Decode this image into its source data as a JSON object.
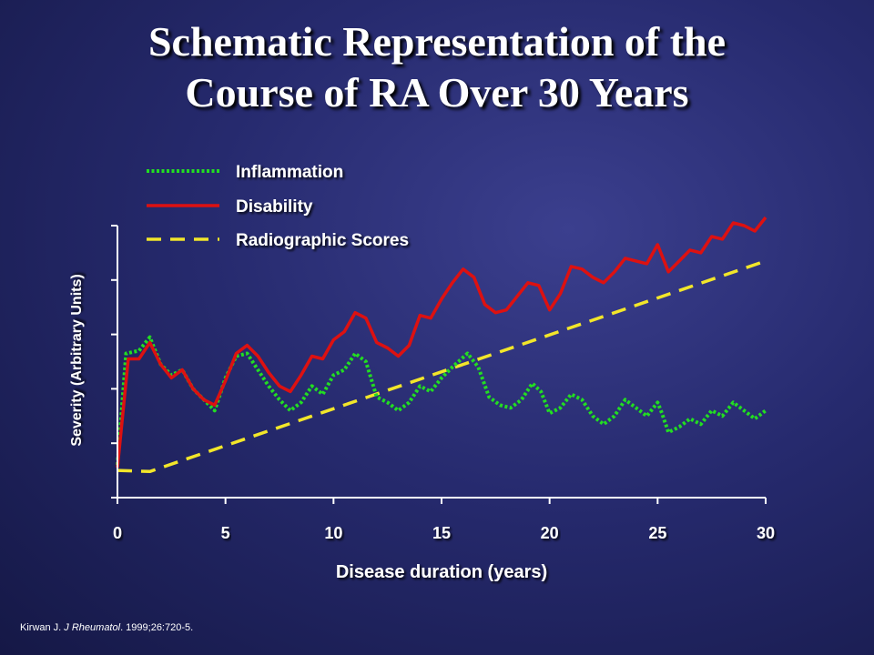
{
  "title_line1": "Schematic Representation of the",
  "title_line2": "Course of RA Over 30 Years",
  "citation": {
    "author": "Kirwan J. ",
    "journal": "J Rheumatol",
    "rest": ". 1999;26:720-5."
  },
  "colors": {
    "inflammation": "#22dd22",
    "disability": "#dd1111",
    "radiographic": "#f2e62a",
    "axis": "#ffffff"
  },
  "chart_data": {
    "type": "line",
    "title": "",
    "xlabel": "Disease duration (years)",
    "ylabel": "Severity (Arbitrary Units)",
    "xlim": [
      0,
      30
    ],
    "ylim": [
      0,
      5
    ],
    "x_ticks": [
      0,
      5,
      10,
      15,
      20,
      25,
      30
    ],
    "y_tick_values": [
      0,
      1,
      2,
      3,
      4,
      5
    ],
    "y_tick_labels_shown": false,
    "grid": false,
    "legend_position": "top-left",
    "series": [
      {
        "name": "Inflammation",
        "style": "dotted",
        "x": [
          0,
          0.4,
          1,
          1.5,
          2,
          2.5,
          3,
          3.5,
          4,
          4.5,
          5,
          5.5,
          6,
          6.5,
          7,
          7.5,
          8,
          8.5,
          9,
          9.5,
          10,
          10.5,
          11,
          11.5,
          12,
          12.5,
          13,
          13.5,
          14,
          14.5,
          15,
          15.5,
          16.2,
          16.7,
          17.2,
          17.7,
          18.2,
          18.7,
          19.2,
          19.6,
          20,
          20.5,
          21,
          21.5,
          22,
          22.5,
          23,
          23.5,
          24,
          24.5,
          25,
          25.2,
          25.5,
          26,
          26.5,
          27,
          27.5,
          28,
          28.5,
          29,
          29.5,
          30
        ],
        "y": [
          0.6,
          2.65,
          2.7,
          2.95,
          2.45,
          2.25,
          2.35,
          2.0,
          1.8,
          1.6,
          2.2,
          2.6,
          2.65,
          2.35,
          2.05,
          1.8,
          1.6,
          1.75,
          2.05,
          1.9,
          2.25,
          2.35,
          2.65,
          2.5,
          1.85,
          1.75,
          1.6,
          1.75,
          2.05,
          1.95,
          2.2,
          2.4,
          2.65,
          2.4,
          1.85,
          1.7,
          1.65,
          1.8,
          2.1,
          1.95,
          1.55,
          1.65,
          1.9,
          1.8,
          1.5,
          1.35,
          1.5,
          1.8,
          1.65,
          1.5,
          1.75,
          1.55,
          1.2,
          1.3,
          1.45,
          1.35,
          1.6,
          1.5,
          1.75,
          1.6,
          1.45,
          1.6
        ]
      },
      {
        "name": "Disability",
        "style": "solid",
        "x": [
          0,
          0.5,
          1,
          1.5,
          2,
          2.5,
          3,
          3.5,
          4,
          4.5,
          5,
          5.5,
          6,
          6.5,
          7,
          7.5,
          8,
          8.5,
          9,
          9.5,
          10,
          10.5,
          11,
          11.5,
          12,
          12.5,
          13,
          13.5,
          14,
          14.5,
          15,
          15.5,
          16,
          16.5,
          17,
          17.5,
          18,
          18.5,
          19,
          19.5,
          20,
          20.5,
          21,
          21.5,
          22,
          22.5,
          23,
          23.5,
          24,
          24.5,
          25,
          25.5,
          26,
          26.5,
          27,
          27.5,
          28,
          28.5,
          29,
          29.5,
          30
        ],
        "y": [
          0.55,
          2.55,
          2.55,
          2.85,
          2.45,
          2.2,
          2.35,
          2.0,
          1.8,
          1.7,
          2.15,
          2.65,
          2.8,
          2.6,
          2.3,
          2.05,
          1.95,
          2.25,
          2.6,
          2.55,
          2.9,
          3.05,
          3.4,
          3.3,
          2.85,
          2.75,
          2.6,
          2.8,
          3.35,
          3.3,
          3.65,
          3.95,
          4.2,
          4.05,
          3.55,
          3.4,
          3.45,
          3.7,
          3.95,
          3.9,
          3.45,
          3.75,
          4.25,
          4.2,
          4.05,
          3.95,
          4.15,
          4.4,
          4.35,
          4.3,
          4.65,
          4.15,
          4.35,
          4.55,
          4.5,
          4.8,
          4.75,
          5.05,
          5.0,
          4.9,
          5.15
        ]
      },
      {
        "name": "Radiographic Scores",
        "style": "dashed",
        "x": [
          0,
          1.5,
          30
        ],
        "y": [
          0.5,
          0.48,
          4.35
        ]
      }
    ]
  }
}
